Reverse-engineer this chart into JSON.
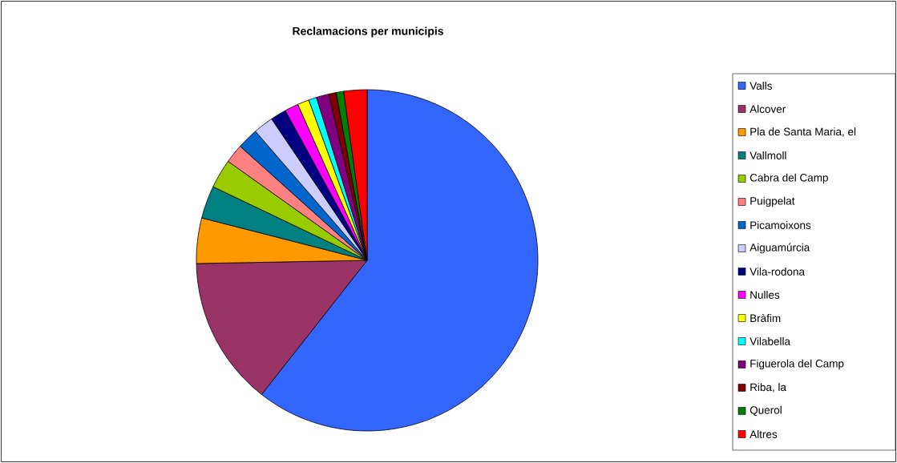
{
  "chart_data": {
    "type": "pie",
    "title": "Reclamacions per municipis",
    "categories": [
      "Valls",
      "Alcover",
      "Pla de Santa Maria, el",
      "Vallmoll",
      "Cabra del Camp",
      "Puigpelat",
      "Picamoixons",
      "Aiguamúrcia",
      "Vila-rodona",
      "Nulles",
      "Bràfim",
      "Vilabella",
      "Figuerola del Camp",
      "Riba, la",
      "Querol",
      "Altres"
    ],
    "values": [
      60.6,
      14.1,
      4.3,
      3.1,
      2.75,
      1.8,
      2.0,
      1.9,
      1.5,
      1.3,
      1.1,
      0.75,
      1.2,
      0.7,
      0.7,
      2.2
    ],
    "colors": [
      "#3366ff",
      "#993366",
      "#ff9900",
      "#008080",
      "#99cc00",
      "#ff8080",
      "#0066cc",
      "#ccccff",
      "#000080",
      "#ff00ff",
      "#ffff00",
      "#00ffff",
      "#800080",
      "#800000",
      "#008000",
      "#ff0000"
    ],
    "legend": "right"
  }
}
